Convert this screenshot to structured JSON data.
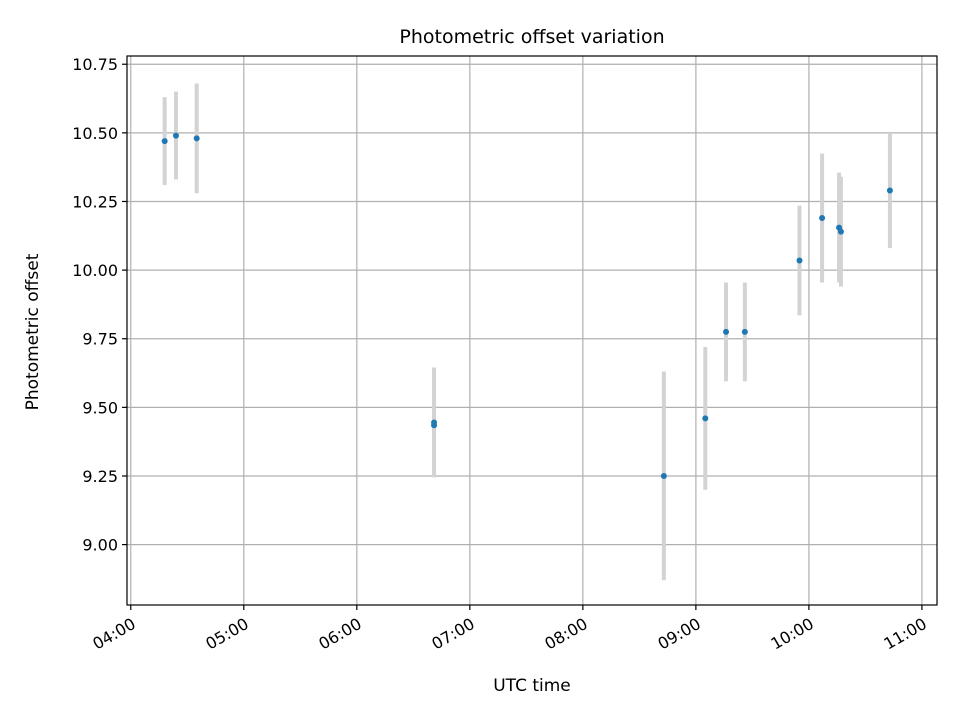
{
  "chart_data": {
    "type": "scatter",
    "title": "Photometric offset variation",
    "xlabel": "UTC time",
    "ylabel": "Photometric offset",
    "x_ticks": [
      "04:00",
      "05:00",
      "06:00",
      "07:00",
      "08:00",
      "09:00",
      "10:00",
      "11:00"
    ],
    "y_ticks": [
      "9.00",
      "9.25",
      "9.50",
      "9.75",
      "10.00",
      "10.25",
      "10.50",
      "10.75"
    ],
    "xlim": [
      "03:58",
      "11:08"
    ],
    "ylim": [
      8.78,
      10.78
    ],
    "grid": true,
    "point_color": "#1f77b4",
    "errorbar_color": "#d3d3d3",
    "points": [
      {
        "x": "04:18",
        "y": 10.47,
        "yerr_low": 0.16,
        "yerr_high": 0.16
      },
      {
        "x": "04:24",
        "y": 10.49,
        "yerr_low": 0.16,
        "yerr_high": 0.16
      },
      {
        "x": "04:35",
        "y": 10.48,
        "yerr_low": 0.2,
        "yerr_high": 0.2
      },
      {
        "x": "06:41",
        "y": 9.435,
        "yerr_low": 0.19,
        "yerr_high": 0.21
      },
      {
        "x": "06:41",
        "y": 9.445,
        "yerr_low": 0.19,
        "yerr_high": 0.2
      },
      {
        "x": "08:43",
        "y": 9.25,
        "yerr_low": 0.38,
        "yerr_high": 0.38
      },
      {
        "x": "09:05",
        "y": 9.46,
        "yerr_low": 0.26,
        "yerr_high": 0.26
      },
      {
        "x": "09:16",
        "y": 9.775,
        "yerr_low": 0.18,
        "yerr_high": 0.18
      },
      {
        "x": "09:26",
        "y": 9.775,
        "yerr_low": 0.18,
        "yerr_high": 0.18
      },
      {
        "x": "09:55",
        "y": 10.035,
        "yerr_low": 0.2,
        "yerr_high": 0.2
      },
      {
        "x": "10:07",
        "y": 10.19,
        "yerr_low": 0.235,
        "yerr_high": 0.235
      },
      {
        "x": "10:16",
        "y": 10.155,
        "yerr_low": 0.2,
        "yerr_high": 0.2
      },
      {
        "x": "10:17",
        "y": 10.14,
        "yerr_low": 0.2,
        "yerr_high": 0.2
      },
      {
        "x": "10:43",
        "y": 10.29,
        "yerr_low": 0.21,
        "yerr_high": 0.21
      }
    ]
  }
}
